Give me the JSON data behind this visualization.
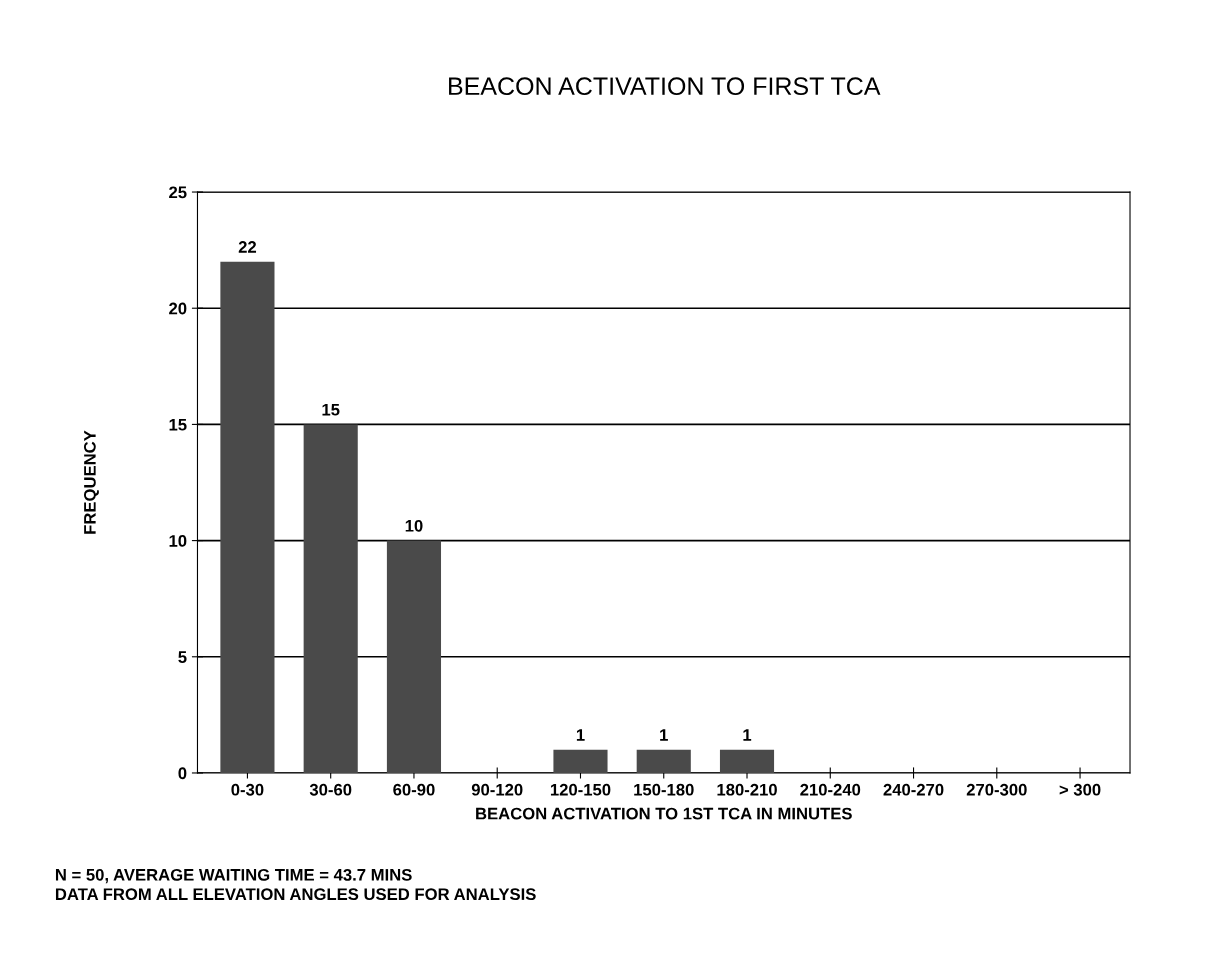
{
  "chart_data": {
    "type": "bar",
    "title": "BEACON ACTIVATION TO FIRST TCA",
    "xlabel": "BEACON ACTIVATION TO 1ST TCA IN MINUTES",
    "ylabel": "FREQUENCY",
    "categories": [
      "0-30",
      "30-60",
      "60-90",
      "90-120",
      "120-150",
      "150-180",
      "180-210",
      "210-240",
      "240-270",
      "270-300",
      "> 300"
    ],
    "values": [
      22,
      15,
      10,
      0,
      1,
      1,
      1,
      0,
      0,
      0,
      0
    ],
    "value_labels": [
      "22",
      "15",
      "10",
      null,
      "1",
      "1",
      "1",
      null,
      null,
      null,
      null
    ],
    "color": "#4a4a4a",
    "ylim": [
      0,
      25
    ],
    "yticks": [
      0,
      5,
      10,
      15,
      20,
      25
    ],
    "grid": "y",
    "annotations": [
      "N = 50, AVERAGE WAITING TIME = 43.7 MINS",
      "DATA FROM ALL ELEVATION ANGLES USED FOR ANALYSIS"
    ]
  }
}
